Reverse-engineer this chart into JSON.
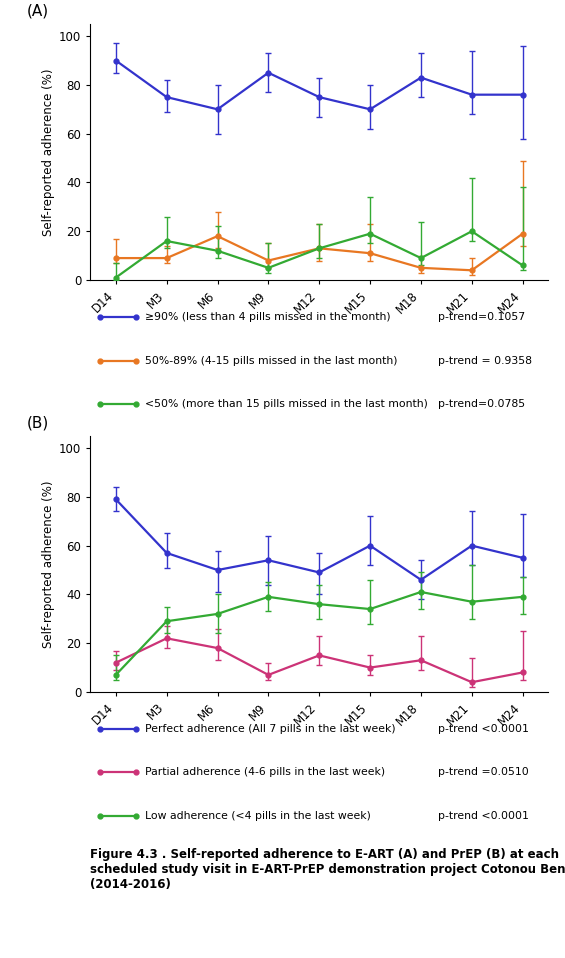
{
  "x_labels": [
    "D14",
    "M3",
    "M6",
    "M9",
    "M12",
    "M15",
    "M18",
    "M21",
    "M24"
  ],
  "panel_A": {
    "blue": {
      "y": [
        90,
        75,
        70,
        85,
        75,
        70,
        83,
        76,
        76
      ],
      "yerr_lo": [
        5,
        6,
        10,
        8,
        8,
        8,
        8,
        8,
        18
      ],
      "yerr_hi": [
        7,
        7,
        10,
        8,
        8,
        10,
        10,
        18,
        20
      ],
      "color": "#3333cc",
      "label": "≥90% (less than 4 pills missed in the month)",
      "ptrend": "p-trend=0.1057"
    },
    "orange": {
      "y": [
        9,
        9,
        18,
        8,
        13,
        11,
        5,
        4,
        19
      ],
      "yerr_lo": [
        2,
        2,
        5,
        3,
        5,
        3,
        2,
        2,
        5
      ],
      "yerr_hi": [
        8,
        5,
        10,
        7,
        10,
        12,
        5,
        5,
        30
      ],
      "color": "#e87722",
      "label": "50%-89% (4-15 pills missed in the last month)",
      "ptrend": "p-trend = 0.9358"
    },
    "green": {
      "y": [
        1,
        16,
        12,
        5,
        13,
        19,
        9,
        20,
        6
      ],
      "yerr_lo": [
        1,
        3,
        3,
        2,
        4,
        4,
        3,
        4,
        2
      ],
      "yerr_hi": [
        6,
        10,
        10,
        10,
        10,
        15,
        15,
        22,
        32
      ],
      "color": "#33aa33",
      "label": "<50% (more than 15 pills missed in the last month)",
      "ptrend": "p-trend=0.0785"
    }
  },
  "panel_B": {
    "blue": {
      "y": [
        79,
        57,
        50,
        54,
        49,
        60,
        46,
        60,
        55
      ],
      "yerr_lo": [
        5,
        6,
        9,
        10,
        9,
        8,
        8,
        8,
        8
      ],
      "yerr_hi": [
        5,
        8,
        8,
        10,
        8,
        12,
        8,
        14,
        18
      ],
      "color": "#3333cc",
      "label": "Perfect adherence (All 7 pills in the last week)",
      "ptrend": "p-trend <0.0001"
    },
    "pink": {
      "y": [
        12,
        22,
        18,
        7,
        15,
        10,
        13,
        4,
        8
      ],
      "yerr_lo": [
        3,
        4,
        5,
        2,
        4,
        3,
        4,
        2,
        3
      ],
      "yerr_hi": [
        5,
        5,
        8,
        5,
        8,
        5,
        10,
        10,
        17
      ],
      "color": "#cc3377",
      "label": "Partial adherence (4-6 pills in the last week)",
      "ptrend": "p-trend =0.0510"
    },
    "green": {
      "y": [
        7,
        29,
        32,
        39,
        36,
        34,
        41,
        37,
        39
      ],
      "yerr_lo": [
        2,
        5,
        8,
        6,
        6,
        6,
        7,
        7,
        7
      ],
      "yerr_hi": [
        8,
        6,
        8,
        6,
        8,
        12,
        8,
        15,
        8
      ],
      "color": "#33aa33",
      "label": "Low adherence (<4 pills in the last week)",
      "ptrend": "p-trend <0.0001"
    }
  },
  "ylabel": "Self-reported adherence (%)",
  "ylim": [
    0,
    105
  ],
  "yticks": [
    0,
    20,
    40,
    60,
    80,
    100
  ],
  "series_order_A": [
    "blue",
    "orange",
    "green"
  ],
  "series_order_B": [
    "blue",
    "pink",
    "green"
  ],
  "caption": "Figure 4.3 . Self-reported adherence to E-ART (A) and PrEP (B) at each\nscheduled study visit in E-ART-PrEP demonstration project Cotonou Benin\n(2014-2016)"
}
